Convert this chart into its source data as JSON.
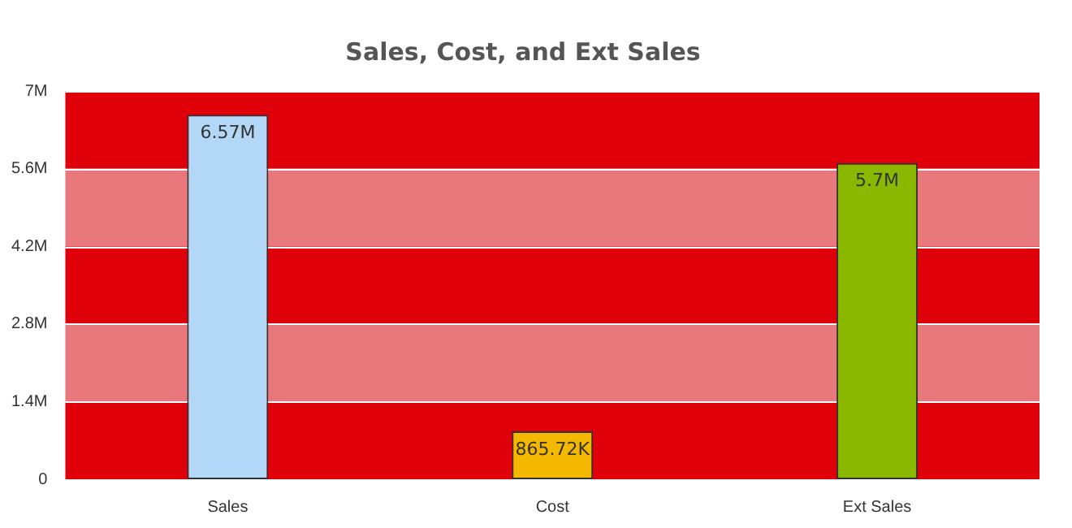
{
  "chart_data": {
    "type": "bar",
    "title": "Sales, Cost, and Ext Sales",
    "categories": [
      "Sales",
      "Cost",
      "Ext Sales"
    ],
    "values": [
      6570000,
      865720,
      5700000
    ],
    "colors": [
      "#b3d7f7",
      "#f5b800",
      "#8ab800"
    ],
    "value_labels": [
      "6.57M",
      "865.72K",
      "5.7M"
    ],
    "ylim": [
      0,
      7000000
    ],
    "yticks": [
      0,
      {
        "value": 1400000,
        "label": "1.4M"
      },
      {
        "value": 2800000,
        "label": "2.8M"
      },
      {
        "value": 4200000,
        "label": "4.2M"
      },
      {
        "value": 5600000,
        "label": "5.6M"
      },
      {
        "value": 7000000,
        "label": "7M"
      }
    ],
    "grid": "y",
    "legend": false,
    "bands": [
      {
        "axis": "y",
        "from": 0,
        "to": 1400000,
        "color": "#e0000a"
      },
      {
        "axis": "y",
        "from": 1400000,
        "to": 2800000,
        "color": "#e8787c"
      },
      {
        "axis": "y",
        "from": 2800000,
        "to": 4200000,
        "color": "#e0000a"
      },
      {
        "axis": "y",
        "from": 4200000,
        "to": 5600000,
        "color": "#e8787c"
      },
      {
        "axis": "y",
        "from": 5600000,
        "to": 7000000,
        "color": "#e0000a"
      }
    ]
  }
}
